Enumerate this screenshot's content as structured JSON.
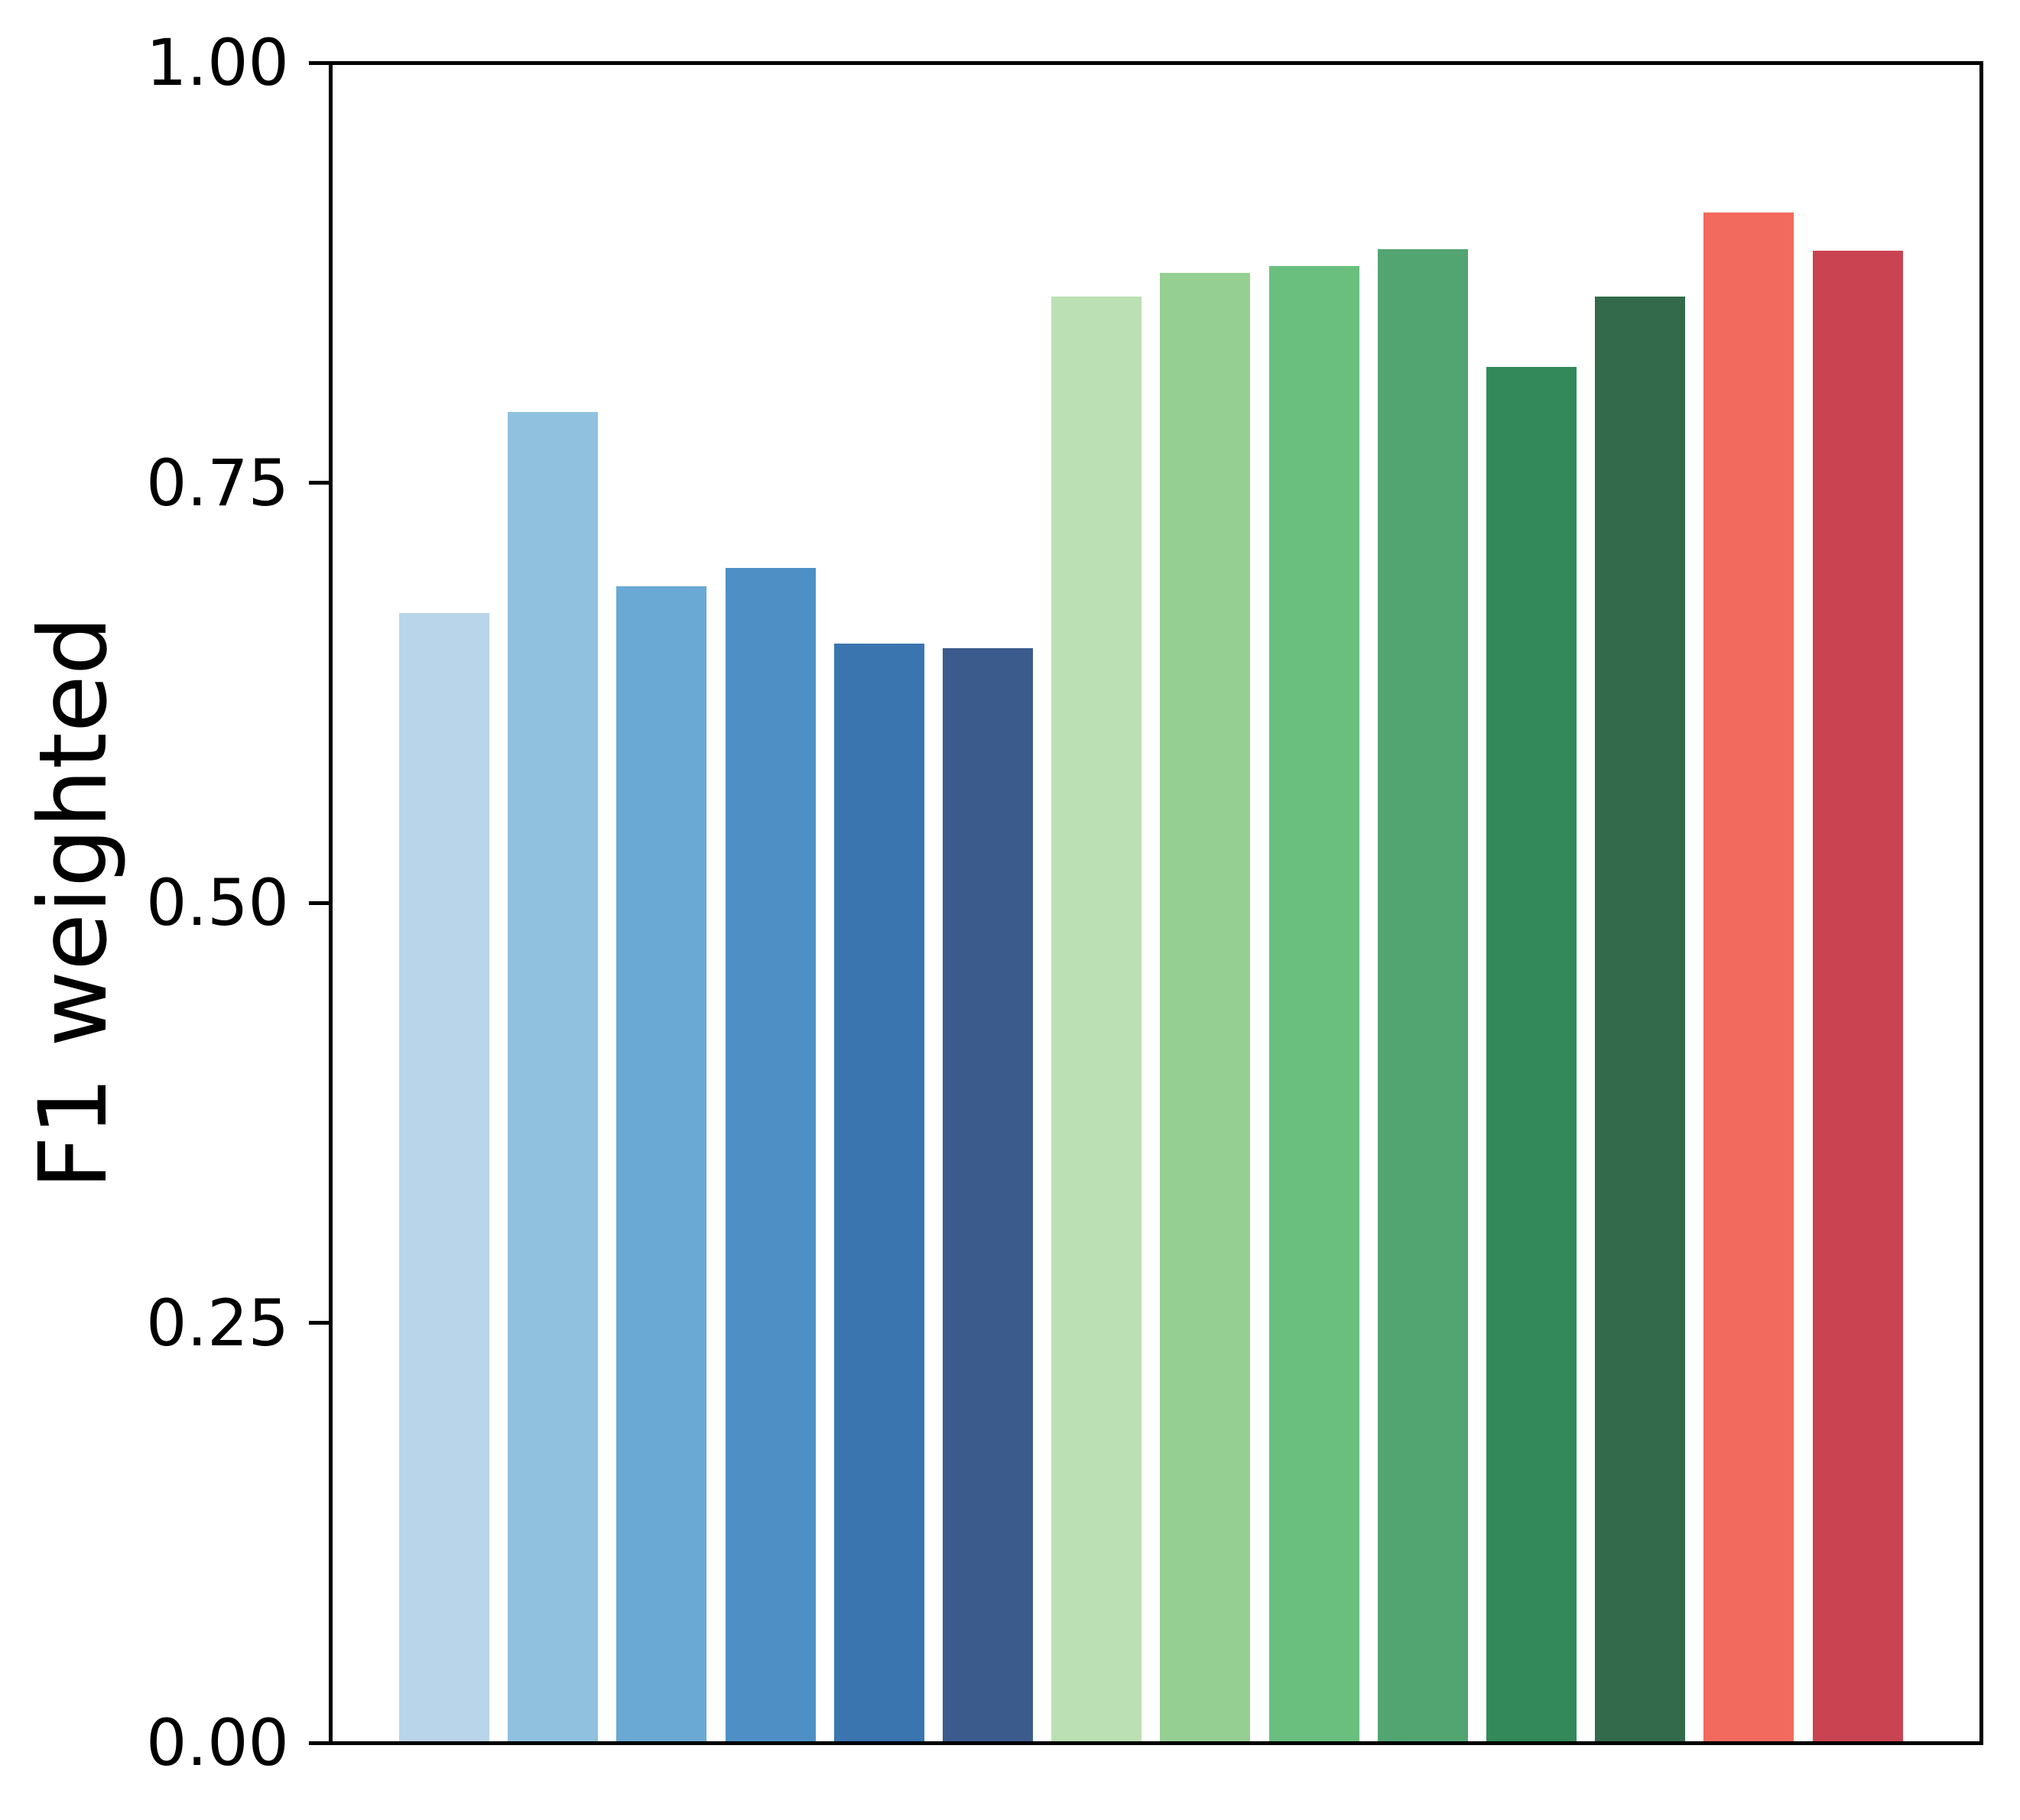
{
  "chart_data": {
    "type": "bar",
    "title": "",
    "xlabel": "",
    "ylabel": "F1 weighted",
    "ylim": [
      0,
      1
    ],
    "grid": false,
    "legend": null,
    "x_tick_labels": "none",
    "background_color": "#ffffff",
    "axis_color": "#000000",
    "yticks": [
      {
        "label": "0.00",
        "value": 0.0
      },
      {
        "label": "0.25",
        "value": 0.25
      },
      {
        "label": "0.50",
        "value": 0.5
      },
      {
        "label": "0.75",
        "value": 0.75
      },
      {
        "label": "1.00",
        "value": 1.0
      }
    ],
    "bars": [
      {
        "value": 0.673,
        "color": "#b8d5e9",
        "group": "blue"
      },
      {
        "value": 0.793,
        "color": "#90c2e0",
        "group": "blue"
      },
      {
        "value": 0.689,
        "color": "#69a9d4",
        "group": "blue"
      },
      {
        "value": 0.7,
        "color": "#4e90c6",
        "group": "blue"
      },
      {
        "value": 0.655,
        "color": "#3a75b0",
        "group": "blue"
      },
      {
        "value": 0.652,
        "color": "#3c5b8d",
        "group": "blue"
      },
      {
        "value": 0.862,
        "color": "#bbe0b3",
        "group": "green"
      },
      {
        "value": 0.876,
        "color": "#95d092",
        "group": "green"
      },
      {
        "value": 0.88,
        "color": "#6abf7f",
        "group": "green"
      },
      {
        "value": 0.89,
        "color": "#52a570",
        "group": "green"
      },
      {
        "value": 0.82,
        "color": "#33895a",
        "group": "green"
      },
      {
        "value": 0.862,
        "color": "#336a4b",
        "group": "green"
      },
      {
        "value": 0.912,
        "color": "#f2695d",
        "group": "red"
      },
      {
        "value": 0.889,
        "color": "#c94450",
        "group": "red"
      }
    ]
  }
}
